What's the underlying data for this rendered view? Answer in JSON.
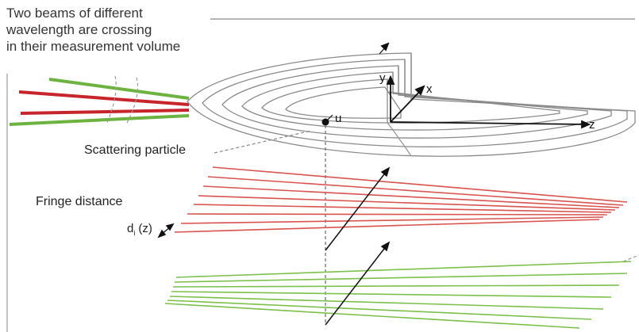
{
  "title_lines": [
    "Two beams of different",
    "wavelength are crossing",
    "in their measurement volume"
  ],
  "labels": {
    "scattering_particle": "Scattering particle",
    "fringe_distance": "Fringe distance",
    "fringe_symbol": "d",
    "fringe_subscript": "i",
    "fringe_arg": "(z)",
    "particle": "u",
    "axis_x": "x",
    "axis_y": "y",
    "axis_z": "z"
  },
  "colors": {
    "beam_green": "#6db33f",
    "beam_red": "#c8242b",
    "fringe_red": "#d9534f",
    "fringe_green": "#7cc04b",
    "outline": "#888888",
    "text": "#333333"
  }
}
